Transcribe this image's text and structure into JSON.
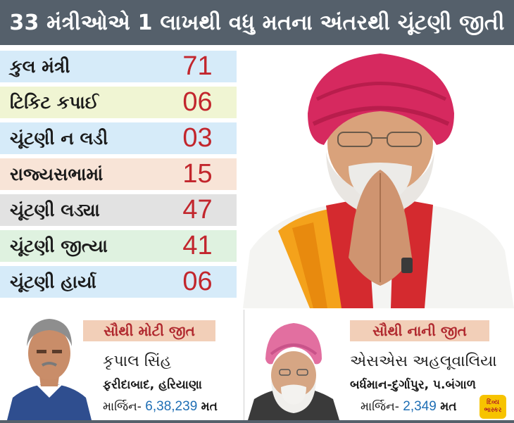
{
  "header": {
    "title": "33 મંત્રીઓએ 1 લાખથી વધુ મતના અંતરથી ચૂંટણી જીતી"
  },
  "stats": [
    {
      "label": "કુલ મંત્રી",
      "value": "71",
      "color": "#d6ebf9"
    },
    {
      "label": "ટિકિટ કપાઈ",
      "value": "06",
      "color": "#f0f5d3"
    },
    {
      "label": "ચૂંટણી ન લડી",
      "value": "03",
      "color": "#d6ebf9"
    },
    {
      "label": "રાજ્યસભામાં",
      "value": "15",
      "color": "#f8e4d7"
    },
    {
      "label": "ચૂંટણી લડ્યા",
      "value": "47",
      "color": "#e2e2e2"
    },
    {
      "label": "ચૂંટણી જીત્યા",
      "value": "41",
      "color": "#dff2e0"
    },
    {
      "label": "ચૂંટણી હાર્યા",
      "value": "06",
      "color": "#d6ebf9"
    }
  ],
  "biggest_win": {
    "tag": "સૌથી મોટી જીત",
    "name": "કૃપાલ સિંહ",
    "place": "ફરીદાબાદ, હરિયાણા",
    "margin_label": "માર્જિન-",
    "margin_value": "6,38,239",
    "margin_unit": "મત"
  },
  "smallest_win": {
    "tag": "સૌથી નાની જીત",
    "name": "એસએસ અહલૂવાલિયા",
    "place": "બર્ધમાન-દુર્ગાપુર, પ.બંગાળ",
    "margin_label": "માર્જિન-",
    "margin_value": "2,349",
    "margin_unit": "મત"
  },
  "logo": {
    "line1": "દિવ્ય",
    "line2": "ભાસ્કર"
  },
  "colors": {
    "header": "#55606b",
    "value_red": "#c2262d",
    "tag_bg": "#f2cfb8",
    "margin_blue": "#1f6fb5"
  }
}
